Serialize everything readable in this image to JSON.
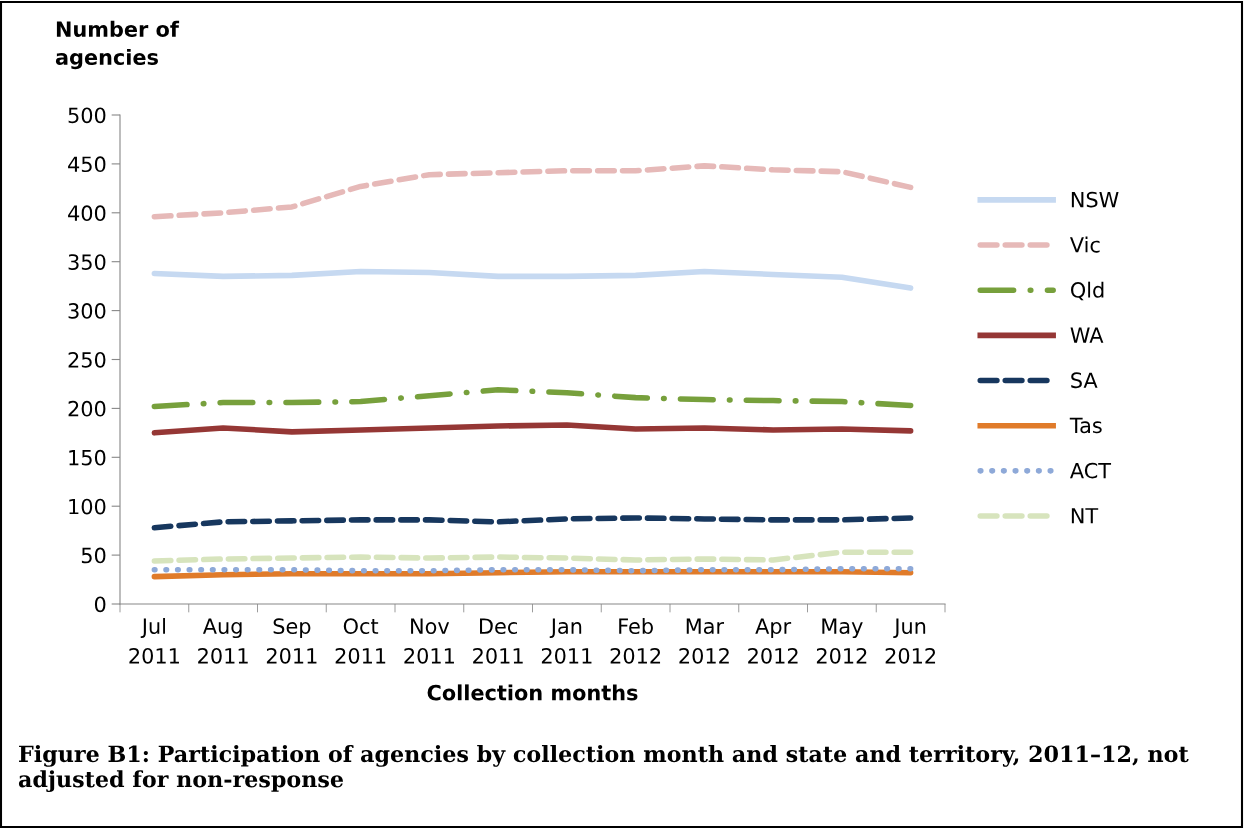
{
  "chart_data": {
    "type": "line",
    "ylabel": "Number of agencies",
    "xlabel": "Collection months",
    "categories": [
      "Jul\n2011",
      "Aug\n2011",
      "Sep\n2011",
      "Oct\n2011",
      "Nov\n2011",
      "Dec\n2011",
      "Jan\n2011",
      "Feb\n2012",
      "Mar\n2012",
      "Apr\n2012",
      "May\n2012",
      "Jun\n2012"
    ],
    "series": [
      {
        "name": "NSW",
        "color": "#c6d9f1",
        "line_style": "solid",
        "values": [
          338,
          335,
          336,
          340,
          339,
          335,
          335,
          336,
          340,
          337,
          334,
          323
        ]
      },
      {
        "name": "Vic",
        "color": "#e6b9b8",
        "line_style": "dashed",
        "values": [
          396,
          400,
          406,
          427,
          439,
          441,
          443,
          443,
          448,
          444,
          442,
          426
        ]
      },
      {
        "name": "Qld",
        "color": "#77a03c",
        "line_style": "dashdot",
        "values": [
          202,
          206,
          206,
          207,
          213,
          219,
          216,
          211,
          209,
          208,
          207,
          203
        ]
      },
      {
        "name": "WA",
        "color": "#953735",
        "line_style": "solid",
        "values": [
          175,
          180,
          176,
          178,
          180,
          182,
          183,
          179,
          180,
          178,
          179,
          177
        ]
      },
      {
        "name": "SA",
        "color": "#17375e",
        "line_style": "dashed",
        "values": [
          78,
          84,
          85,
          86,
          86,
          84,
          87,
          88,
          87,
          86,
          86,
          88
        ]
      },
      {
        "name": "Tas",
        "color": "#e07b2a",
        "line_style": "solid",
        "values": [
          28,
          30,
          31,
          31,
          31,
          32,
          33,
          33,
          33,
          33,
          33,
          32
        ]
      },
      {
        "name": "ACT",
        "color": "#8ea9d8",
        "line_style": "dotted",
        "values": [
          35,
          35,
          35,
          34,
          34,
          35,
          35,
          34,
          35,
          35,
          36,
          36
        ]
      },
      {
        "name": "NT",
        "color": "#d7e4bd",
        "line_style": "dashed",
        "values": [
          44,
          46,
          47,
          48,
          47,
          48,
          47,
          45,
          46,
          45,
          53,
          53
        ]
      }
    ],
    "ylim": [
      0,
      500
    ],
    "yticks": [
      0,
      50,
      100,
      150,
      200,
      250,
      300,
      350,
      400,
      450,
      500
    ],
    "grid": false,
    "legend": "right",
    "marker": "none",
    "annotations": [
      "Figure B1: Participation of agencies by collection month and state and territory, 2011–12, not adjusted for non-response"
    ]
  }
}
